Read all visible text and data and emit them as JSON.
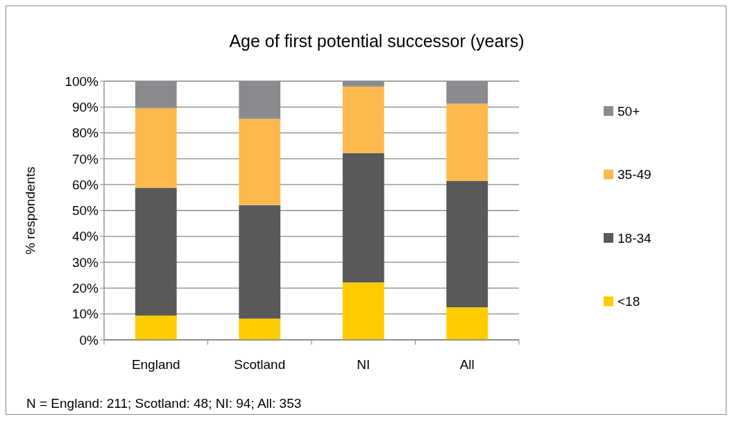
{
  "chart_data": {
    "type": "bar",
    "title": "Age of first potential successor (years)",
    "ylabel": "% respondents",
    "categories": [
      "England",
      "Scotland",
      "NI",
      "All"
    ],
    "stacked": true,
    "series": [
      {
        "name": "<18",
        "color": "#ffcc00",
        "values": [
          9.4,
          8.2,
          22.2,
          12.6
        ]
      },
      {
        "name": "18-34",
        "color": "#58595b",
        "values": [
          49.3,
          43.9,
          50.0,
          48.8
        ]
      },
      {
        "name": "35-49",
        "color": "#fdb94e",
        "values": [
          30.9,
          33.3,
          25.7,
          29.9
        ]
      },
      {
        "name": "50+",
        "color": "#8a8b8e",
        "values": [
          10.4,
          14.6,
          2.1,
          8.7
        ]
      }
    ],
    "ylim": [
      0,
      100
    ],
    "yticks": [
      {
        "value": 0,
        "label": "0%"
      },
      {
        "value": 10,
        "label": "10%"
      },
      {
        "value": 20,
        "label": "20%"
      },
      {
        "value": 30,
        "label": "30%"
      },
      {
        "value": 40,
        "label": "40%"
      },
      {
        "value": 50,
        "label": "50%"
      },
      {
        "value": 60,
        "label": "60%"
      },
      {
        "value": 70,
        "label": "70%"
      },
      {
        "value": 80,
        "label": "80%"
      },
      {
        "value": 90,
        "label": "90%"
      },
      {
        "value": 100,
        "label": "100%"
      }
    ],
    "grid": "y",
    "legend": "right",
    "annotations": [
      "N = England: 211; Scotland: 48; NI: 94; All: 353"
    ]
  }
}
